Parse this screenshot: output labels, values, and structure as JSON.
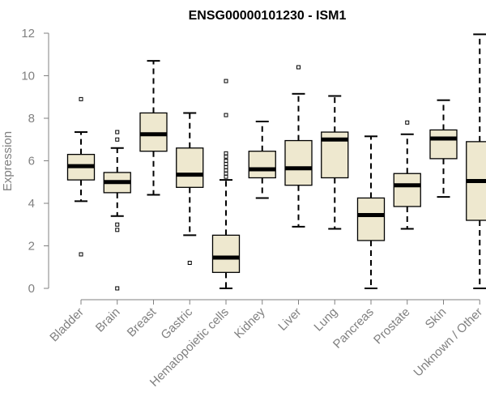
{
  "chart_data": {
    "type": "boxplot",
    "title": "ENSG00000101230 - ISM1",
    "xlabel": "",
    "ylabel": "Expression",
    "ylim": [
      0,
      12
    ],
    "yticks": [
      "0",
      "2",
      "4",
      "6",
      "8",
      "10",
      "12"
    ],
    "colors": {
      "box_fill": "#eee8cf",
      "stroke": "#000000",
      "axis": "#808080"
    },
    "categories": [
      "Bladder",
      "Brain",
      "Breast",
      "Gastric",
      "Hematopoietic cells",
      "Kidney",
      "Liver",
      "Lung",
      "Pancreas",
      "Prostate",
      "Skin",
      "Unknown / Other"
    ],
    "boxes": [
      {
        "name": "Bladder",
        "whisker_low": 4.1,
        "q1": 5.1,
        "median": 5.75,
        "q3": 6.3,
        "whisker_high": 7.35,
        "outliers": [
          8.9,
          1.6
        ]
      },
      {
        "name": "Brain",
        "whisker_low": 3.4,
        "q1": 4.5,
        "median": 5.0,
        "q3": 5.45,
        "whisker_high": 6.6,
        "outliers": [
          7.35,
          7.0,
          3.0,
          2.75,
          0.0
        ]
      },
      {
        "name": "Breast",
        "whisker_low": 4.4,
        "q1": 6.45,
        "median": 7.25,
        "q3": 8.25,
        "whisker_high": 10.7,
        "outliers": []
      },
      {
        "name": "Gastric",
        "whisker_low": 2.5,
        "q1": 4.75,
        "median": 5.35,
        "q3": 6.6,
        "whisker_high": 8.25,
        "outliers": [
          1.2
        ]
      },
      {
        "name": "Hematopoietic cells",
        "whisker_low": 0.0,
        "q1": 0.75,
        "median": 1.45,
        "q3": 2.5,
        "whisker_high": 5.1,
        "outliers": [
          9.75,
          8.15,
          6.35,
          6.2,
          6.0,
          5.85,
          5.7,
          5.55,
          5.4,
          5.25
        ]
      },
      {
        "name": "Kidney",
        "whisker_low": 4.25,
        "q1": 5.2,
        "median": 5.6,
        "q3": 6.45,
        "whisker_high": 7.85,
        "outliers": []
      },
      {
        "name": "Liver",
        "whisker_low": 2.9,
        "q1": 4.85,
        "median": 5.65,
        "q3": 6.95,
        "whisker_high": 9.15,
        "outliers": [
          10.4
        ]
      },
      {
        "name": "Lung",
        "whisker_low": 2.8,
        "q1": 5.2,
        "median": 7.0,
        "q3": 7.35,
        "whisker_high": 9.05,
        "outliers": []
      },
      {
        "name": "Pancreas",
        "whisker_low": 0.0,
        "q1": 2.25,
        "median": 3.45,
        "q3": 4.25,
        "whisker_high": 7.15,
        "outliers": []
      },
      {
        "name": "Prostate",
        "whisker_low": 2.8,
        "q1": 3.85,
        "median": 4.85,
        "q3": 5.4,
        "whisker_high": 7.25,
        "outliers": [
          7.8
        ]
      },
      {
        "name": "Skin",
        "whisker_low": 4.3,
        "q1": 6.1,
        "median": 7.05,
        "q3": 7.45,
        "whisker_high": 8.85,
        "outliers": []
      },
      {
        "name": "Unknown / Other",
        "whisker_low": 0.0,
        "q1": 3.2,
        "median": 5.05,
        "q3": 6.9,
        "whisker_high": 11.95,
        "outliers": []
      }
    ]
  }
}
